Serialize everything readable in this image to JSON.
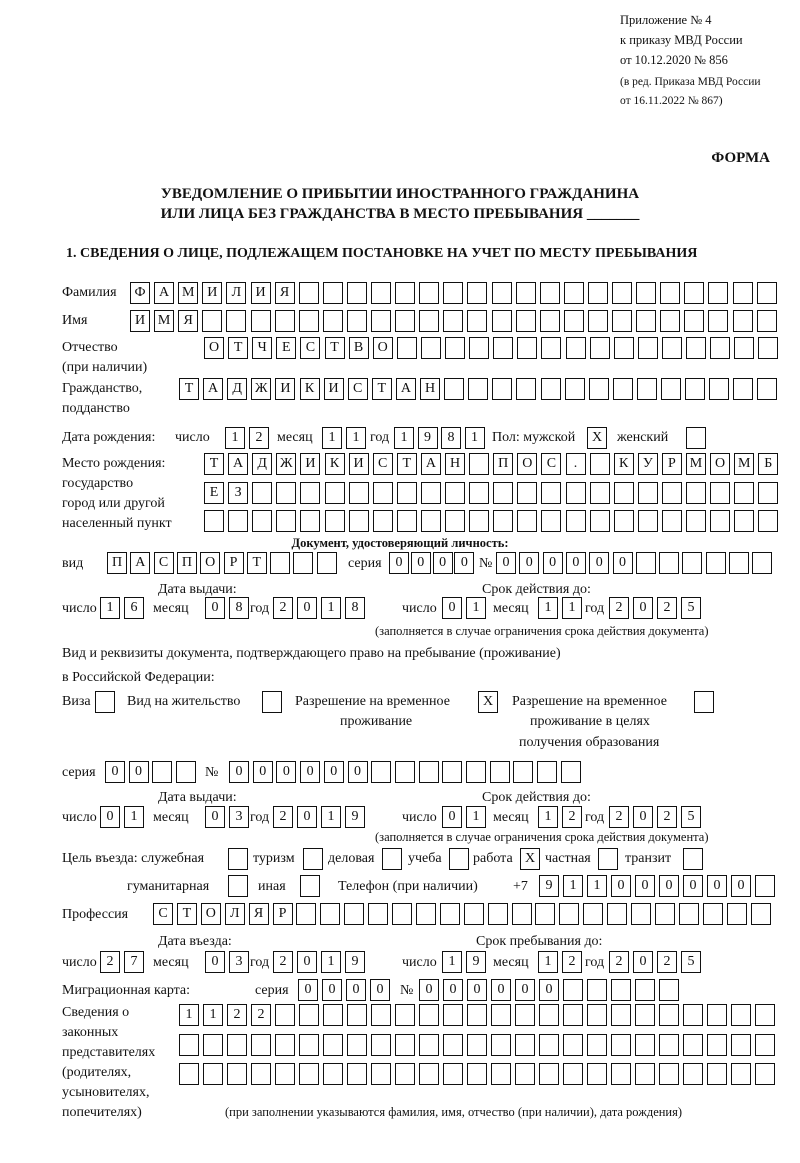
{
  "header": {
    "appendix": "Приложение № 4",
    "order": "к приказу МВД России",
    "order_date": "от 10.12.2020 № 856",
    "edition1": "(в ред. Приказа МВД России",
    "edition2": "от 16.11.2022 № 867)",
    "form": "ФОРМА",
    "title1": "УВЕДОМЛЕНИЕ О ПРИБЫТИИ ИНОСТРАННОГО ГРАЖДАНИНА",
    "title2": "ИЛИ ЛИЦА БЕЗ ГРАЖДАНСТВА В МЕСТО ПРЕБЫВАНИЯ _______",
    "section1": "1. СВЕДЕНИЯ О ЛИЦЕ, ПОДЛЕЖАЩЕМ ПОСТАНОВКЕ НА УЧЕТ ПО МЕСТУ ПРЕБЫВАНИЯ"
  },
  "labels": {
    "surname": "Фамилия",
    "name": "Имя",
    "patronymic": "Отчество",
    "if_any": "(при наличии)",
    "citizenship": "Гражданство,",
    "nationality": "подданство",
    "dob": "Дата рождения:",
    "day": "число",
    "month": "месяц",
    "year": "год",
    "sex_male": "Пол: мужской",
    "sex_female": "женский",
    "pob1": "Место рождения:",
    "pob2": "государство",
    "pob3": "город или другой",
    "pob4": "населенный пункт",
    "id_doc": "Документ, удостоверяющий личность:",
    "kind": "вид",
    "series": "серия",
    "number": "№",
    "issue_date": "Дата выдачи:",
    "valid_until": "Срок действия до:",
    "validity_note": "(заполняется в случае ограничения срока действия документа)",
    "stay_doc1": "Вид и реквизиты документа, подтверждающего право на пребывание (проживание)",
    "stay_doc2": "в Российской Федерации:",
    "visa": "Виза",
    "residence": "Вид на жительство",
    "temp1": "Разрешение на временное",
    "temp2": "проживание",
    "edu1": "Разрешение на временное",
    "edu2": "проживание в целях",
    "edu3": "получения образования",
    "purpose": "Цель въезда: служебная",
    "tourism": "туризм",
    "business": "деловая",
    "study": "учеба",
    "work": "работа",
    "private": "частная",
    "transit": "транзит",
    "humanitarian": "гуманитарная",
    "other": "иная",
    "phone": "Телефон (при наличии)",
    "phone_prefix": "+7",
    "profession": "Профессия",
    "entry_date": "Дата въезда:",
    "stay_until": "Срок пребывания до:",
    "migration_card": "Миграционная карта:",
    "rep1": "Сведения о",
    "rep2": "законных",
    "rep3": "представителях",
    "rep4": "(родителях,",
    "rep5": "усыновителях,",
    "rep6": "попечителях)",
    "rep_note": "(при заполнении указываются фамилия, имя, отчество (при наличии), дата рождения)"
  },
  "fields": {
    "surname": "ФАМИЛИЯ",
    "name": "ИМЯ",
    "patronymic": "ОТЧЕСТВО",
    "citizenship": "ТАДЖИКИСТАН",
    "dob_day": "12",
    "dob_month": "11",
    "dob_year": "1981",
    "sex_male": "X",
    "sex_female": "",
    "pob_line1": "ТАДЖИКИСТАН ПОС. КУРМОМБ",
    "pob_line2": "ЕЗ",
    "pob_line3": "",
    "id_kind": "ПАСПОРТ",
    "id_series": "0000",
    "id_number": "000000",
    "id_issue_day": "16",
    "id_issue_month": "08",
    "id_issue_year": "2018",
    "id_valid_day": "01",
    "id_valid_month": "11",
    "id_valid_year": "2025",
    "visa": "",
    "residence": "",
    "temp_residence": "X",
    "edu_residence": "",
    "stay_series": "00",
    "stay_number": "000000",
    "stay_issue_day": "01",
    "stay_issue_month": "03",
    "stay_issue_year": "2019",
    "stay_valid_day": "01",
    "stay_valid_month": "12",
    "stay_valid_year": "2025",
    "purpose_official": "",
    "purpose_tourism": "",
    "purpose_business": "",
    "purpose_study": "",
    "purpose_work": "X",
    "purpose_private": "",
    "purpose_transit": "",
    "purpose_humanitarian": "",
    "purpose_other": "",
    "phone": "911000000",
    "profession": "СТОЛЯР",
    "entry_day": "27",
    "entry_month": "03",
    "entry_year": "2019",
    "stay_until_day": "19",
    "stay_until_month": "12",
    "stay_until_year": "2025",
    "mig_series": "0000",
    "mig_number": "000000",
    "rep_line1": "1122",
    "rep_line2": "",
    "rep_line3": ""
  }
}
